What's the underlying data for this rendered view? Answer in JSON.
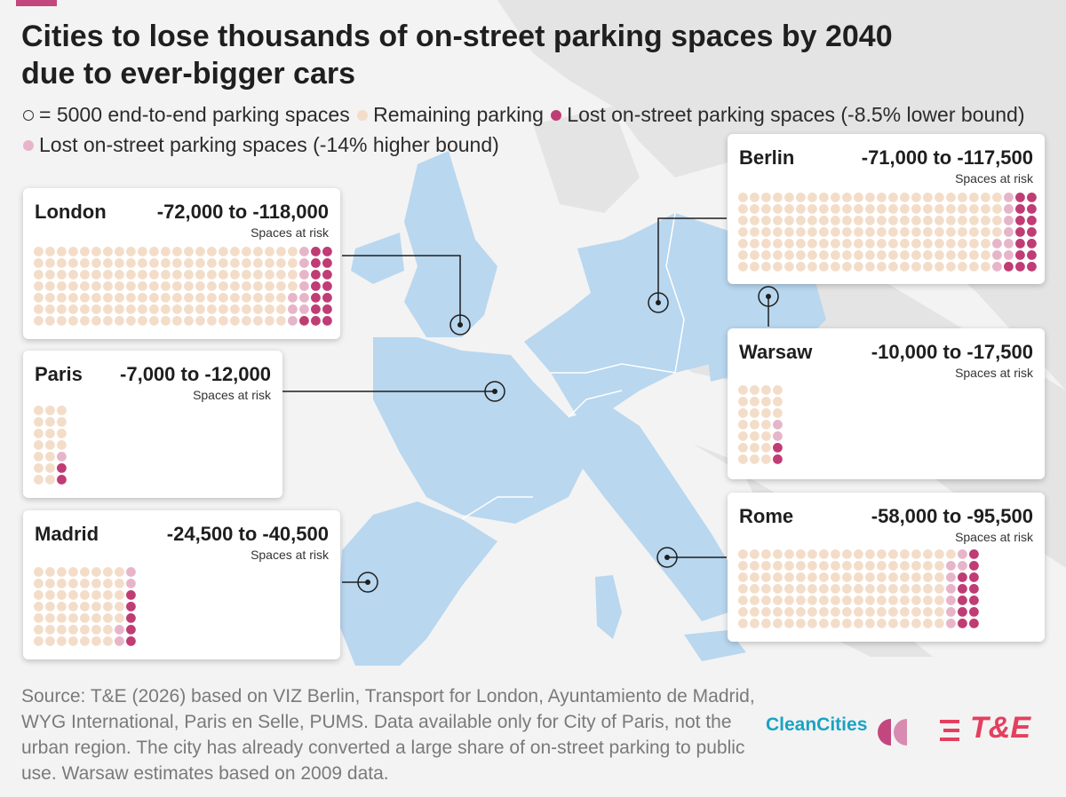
{
  "title": "Cities to lose thousands of on-street parking spaces by 2040 due to ever-bigger cars",
  "legend": {
    "unit": "= 5000 end-to-end parking spaces",
    "remaining": "Remaining parking",
    "lost_low": "Lost on-street parking spaces (-8.5% lower bound)",
    "lost_high": "Lost on-street parking spaces (-14% higher bound)"
  },
  "colors": {
    "remaining": "#f3ddc9",
    "lost_low": "#bf3c74",
    "lost_high": "#e7b5c9",
    "map_land": "#b9d7ef",
    "map_other": "#e4e4e4",
    "background": "#f3f3f3"
  },
  "chart_data": {
    "type": "waffle",
    "unit_label": "= 5000 end-to-end parking spaces",
    "series_labels": [
      "Remaining parking",
      "Lost on-street parking spaces (-8.5% lower bound)",
      "Lost on-street parking spaces (-14% higher bound)"
    ],
    "cities": [
      {
        "name": "London",
        "range": "-72,000 to -118,000",
        "sublabel": "Spaces at risk",
        "lost_low": -72000,
        "lost_high": -118000,
        "dots": {
          "rows": 7,
          "cols": 26
        }
      },
      {
        "name": "Paris",
        "range": "-7,000 to -12,000",
        "sublabel": "Spaces at risk",
        "lost_low": -7000,
        "lost_high": -12000,
        "dots": {
          "rows": 7,
          "cols": 3
        }
      },
      {
        "name": "Madrid",
        "range": "-24,500 to -40,500",
        "sublabel": "Spaces at risk",
        "lost_low": -24500,
        "lost_high": -40500,
        "dots": {
          "rows": 7,
          "cols": 9
        }
      },
      {
        "name": "Berlin",
        "range": "-71,000 to -117,500",
        "sublabel": "Spaces at risk",
        "lost_low": -71000,
        "lost_high": -117500,
        "dots": {
          "rows": 7,
          "cols": 26
        }
      },
      {
        "name": "Warsaw",
        "range": "-10,000 to -17,500",
        "sublabel": "Spaces at risk",
        "lost_low": -10000,
        "lost_high": -17500,
        "dots": {
          "rows": 7,
          "cols": 4
        }
      },
      {
        "name": "Rome",
        "range": "-58,000 to -95,500",
        "sublabel": "Spaces at risk",
        "lost_low": -58000,
        "lost_high": -95500,
        "dots": {
          "rows": 7,
          "cols": 21
        }
      }
    ]
  },
  "source": "Source: T&E (2026) based on VIZ Berlin, Transport for London, Ayuntamiento de Madrid, WYG International, Paris en Selle, PUMS. Data available only for City of Paris, not the urban region. The city has already converted a large share of on-street parking to public use. Warsaw estimates based on 2009 data.",
  "logos": {
    "cleancities": "CleanCities",
    "te": "T&E"
  }
}
